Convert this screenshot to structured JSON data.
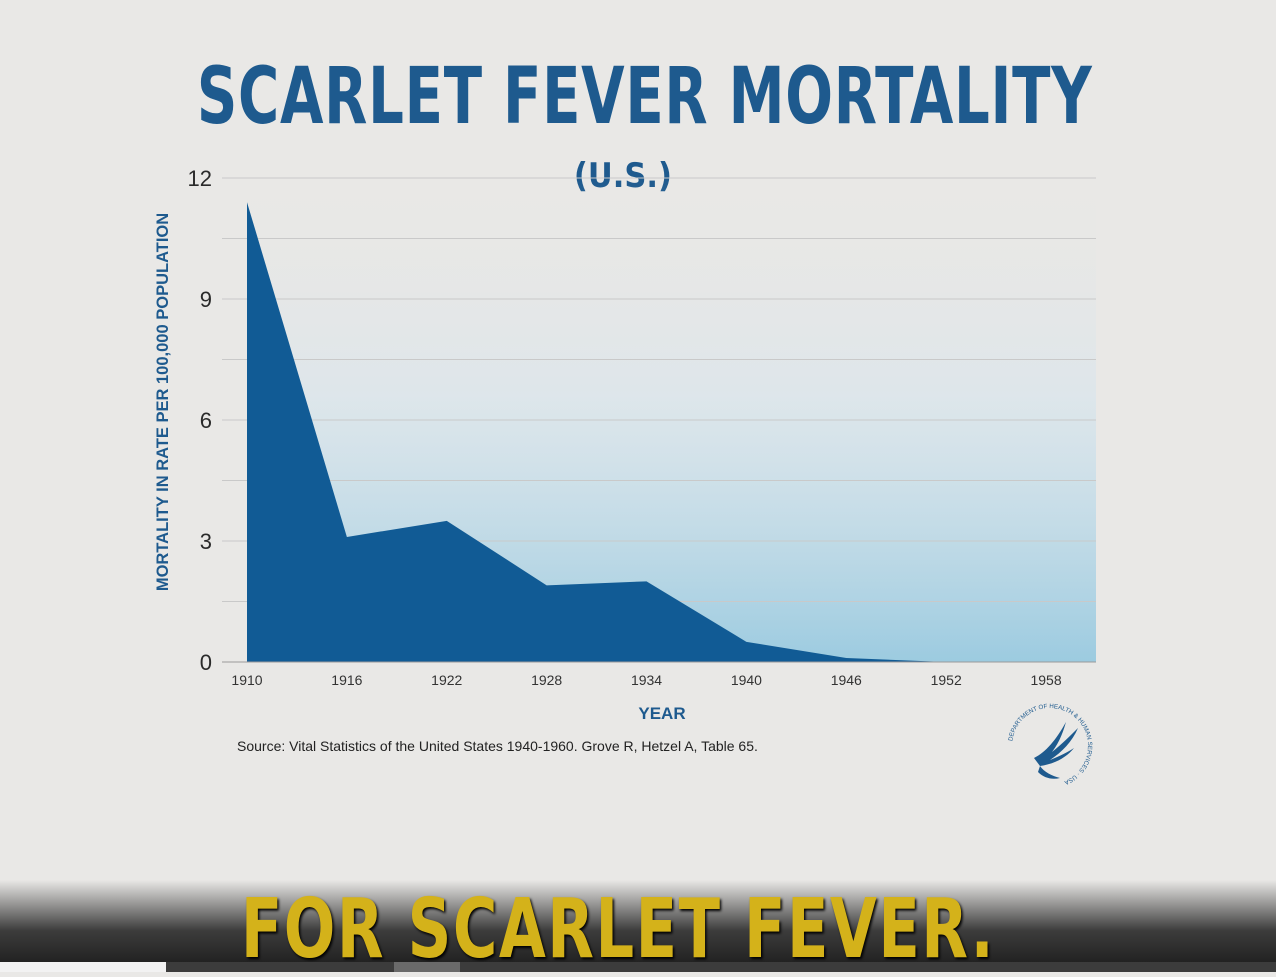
{
  "slide": {
    "title": "SCARLET FEVER MORTALITY",
    "subtitle": "(U.S.)",
    "source": "Source: Vital Statistics of the United States 1940-1960. Grove R, Hetzel A, Table 65.",
    "seal_text": "DEPARTMENT OF HEALTH & HUMAN SERVICES · USA",
    "caption": "FOR SCARLET FEVER."
  },
  "colors": {
    "title": "#1e5a8e",
    "area_dark": "#115b95",
    "area_light": "#9ccbe0",
    "caption": "#d4b21a"
  },
  "video": {
    "progress_fraction": 0.13
  },
  "chart_data": {
    "type": "area",
    "title": "SCARLET FEVER MORTALITY",
    "subtitle": "(U.S.)",
    "xlabel": "YEAR",
    "ylabel": "MORTALITY IN RATE PER 100,000 POPULATION",
    "x_ticks": [
      "1910",
      "1916",
      "1922",
      "1928",
      "1934",
      "1940",
      "1946",
      "1952",
      "1958"
    ],
    "y_ticks": [
      "0",
      "3",
      "6",
      "9",
      "12"
    ],
    "xlim": [
      1910,
      1961
    ],
    "ylim": [
      0,
      12
    ],
    "grid": true,
    "series": [
      {
        "x": [
          1910,
          1916,
          1922,
          1928,
          1934,
          1940,
          1946,
          1952,
          1958,
          1961
        ],
        "values": [
          11.4,
          3.1,
          3.5,
          1.9,
          2.0,
          0.5,
          0.1,
          0.0,
          0.0,
          0.0
        ]
      }
    ]
  }
}
